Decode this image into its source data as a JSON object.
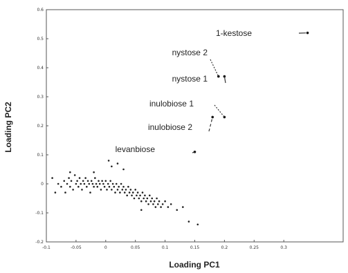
{
  "chart_data": {
    "type": "scatter",
    "xlabel": "Loading PC1",
    "ylabel": "Loading PC2",
    "xlim": [
      -0.1,
      0.4
    ],
    "ylim": [
      -0.2,
      0.6
    ],
    "xticks": [
      {
        "value": -0.1,
        "label": "-0.1"
      },
      {
        "value": -0.05,
        "label": "-0.05"
      },
      {
        "value": 0,
        "label": "0"
      },
      {
        "value": 0.05,
        "label": "0.05"
      },
      {
        "value": 0.1,
        "label": "0.1"
      },
      {
        "value": 0.15,
        "label": "0.15"
      },
      {
        "value": 0.2,
        "label": "0.2"
      },
      {
        "value": 0.25,
        "label": "0.25"
      },
      {
        "value": 0.3,
        "label": "0.3"
      }
    ],
    "yticks": [
      {
        "value": -0.2,
        "label": "-0.2"
      },
      {
        "value": -0.1,
        "label": "-0.1"
      },
      {
        "value": 0,
        "label": "0"
      },
      {
        "value": 0.1,
        "label": "0.1"
      },
      {
        "value": 0.2,
        "label": "0.2"
      },
      {
        "value": 0.3,
        "label": "0.3"
      },
      {
        "value": 0.4,
        "label": "0.4"
      },
      {
        "value": 0.5,
        "label": "0.5"
      },
      {
        "value": 0.6,
        "label": "0.6"
      }
    ],
    "highlighted_points": [
      {
        "label": "1-kestose",
        "x": 0.34,
        "y": 0.52
      },
      {
        "label": "nystose 2",
        "x": 0.19,
        "y": 0.37
      },
      {
        "label": "nystose 1",
        "x": 0.2,
        "y": 0.37
      },
      {
        "label": "inulobiose 1",
        "x": 0.2,
        "y": 0.23
      },
      {
        "label": "inulobiose 2",
        "x": 0.18,
        "y": 0.23
      },
      {
        "label": "levanbiose",
        "x": 0.15,
        "y": 0.11
      }
    ],
    "points": [
      {
        "x": -0.09,
        "y": 0.02
      },
      {
        "x": -0.085,
        "y": -0.03
      },
      {
        "x": -0.08,
        "y": 0.0
      },
      {
        "x": -0.075,
        "y": -0.01
      },
      {
        "x": -0.07,
        "y": 0.01
      },
      {
        "x": -0.068,
        "y": -0.03
      },
      {
        "x": -0.065,
        "y": 0.0
      },
      {
        "x": -0.062,
        "y": 0.02
      },
      {
        "x": -0.06,
        "y": -0.01
      },
      {
        "x": -0.058,
        "y": 0.01
      },
      {
        "x": -0.055,
        "y": -0.02
      },
      {
        "x": -0.052,
        "y": 0.03
      },
      {
        "x": -0.05,
        "y": 0.0
      },
      {
        "x": -0.048,
        "y": 0.01
      },
      {
        "x": -0.046,
        "y": -0.01
      },
      {
        "x": -0.044,
        "y": 0.02
      },
      {
        "x": -0.042,
        "y": 0.0
      },
      {
        "x": -0.04,
        "y": -0.02
      },
      {
        "x": -0.038,
        "y": 0.01
      },
      {
        "x": -0.036,
        "y": 0.0
      },
      {
        "x": -0.034,
        "y": 0.02
      },
      {
        "x": -0.032,
        "y": -0.01
      },
      {
        "x": -0.03,
        "y": 0.01
      },
      {
        "x": -0.028,
        "y": 0.0
      },
      {
        "x": -0.026,
        "y": -0.03
      },
      {
        "x": -0.024,
        "y": 0.01
      },
      {
        "x": -0.022,
        "y": 0.0
      },
      {
        "x": -0.02,
        "y": -0.01
      },
      {
        "x": -0.018,
        "y": 0.02
      },
      {
        "x": -0.016,
        "y": 0.0
      },
      {
        "x": -0.014,
        "y": -0.01
      },
      {
        "x": -0.012,
        "y": 0.01
      },
      {
        "x": -0.01,
        "y": 0.0
      },
      {
        "x": -0.008,
        "y": -0.02
      },
      {
        "x": -0.006,
        "y": 0.01
      },
      {
        "x": -0.004,
        "y": 0.0
      },
      {
        "x": -0.002,
        "y": -0.01
      },
      {
        "x": 0.0,
        "y": 0.01
      },
      {
        "x": 0.002,
        "y": -0.02
      },
      {
        "x": 0.004,
        "y": 0.0
      },
      {
        "x": 0.006,
        "y": -0.01
      },
      {
        "x": 0.008,
        "y": 0.01
      },
      {
        "x": 0.01,
        "y": -0.02
      },
      {
        "x": 0.012,
        "y": 0.0
      },
      {
        "x": 0.014,
        "y": -0.01
      },
      {
        "x": 0.016,
        "y": -0.03
      },
      {
        "x": 0.018,
        "y": 0.0
      },
      {
        "x": 0.02,
        "y": -0.02
      },
      {
        "x": 0.022,
        "y": -0.01
      },
      {
        "x": 0.024,
        "y": -0.03
      },
      {
        "x": 0.026,
        "y": 0.0
      },
      {
        "x": 0.028,
        "y": -0.02
      },
      {
        "x": 0.03,
        "y": -0.01
      },
      {
        "x": 0.032,
        "y": -0.03
      },
      {
        "x": 0.034,
        "y": -0.02
      },
      {
        "x": 0.036,
        "y": -0.04
      },
      {
        "x": 0.038,
        "y": -0.01
      },
      {
        "x": 0.04,
        "y": -0.03
      },
      {
        "x": 0.042,
        "y": -0.02
      },
      {
        "x": 0.044,
        "y": -0.04
      },
      {
        "x": 0.046,
        "y": -0.03
      },
      {
        "x": 0.048,
        "y": -0.05
      },
      {
        "x": 0.05,
        "y": -0.02
      },
      {
        "x": 0.052,
        "y": -0.04
      },
      {
        "x": 0.054,
        "y": -0.03
      },
      {
        "x": 0.056,
        "y": -0.05
      },
      {
        "x": 0.058,
        "y": -0.04
      },
      {
        "x": 0.06,
        "y": -0.06
      },
      {
        "x": 0.062,
        "y": -0.03
      },
      {
        "x": 0.064,
        "y": -0.05
      },
      {
        "x": 0.066,
        "y": -0.04
      },
      {
        "x": 0.068,
        "y": -0.06
      },
      {
        "x": 0.07,
        "y": -0.05
      },
      {
        "x": 0.072,
        "y": -0.07
      },
      {
        "x": 0.074,
        "y": -0.04
      },
      {
        "x": 0.076,
        "y": -0.06
      },
      {
        "x": 0.078,
        "y": -0.05
      },
      {
        "x": 0.08,
        "y": -0.07
      },
      {
        "x": 0.082,
        "y": -0.06
      },
      {
        "x": 0.084,
        "y": -0.08
      },
      {
        "x": 0.086,
        "y": -0.05
      },
      {
        "x": 0.088,
        "y": -0.07
      },
      {
        "x": 0.09,
        "y": -0.06
      },
      {
        "x": 0.093,
        "y": -0.08
      },
      {
        "x": 0.096,
        "y": -0.07
      },
      {
        "x": 0.1,
        "y": -0.06
      },
      {
        "x": 0.105,
        "y": -0.08
      },
      {
        "x": 0.11,
        "y": -0.07
      },
      {
        "x": 0.12,
        "y": -0.09
      },
      {
        "x": 0.13,
        "y": -0.08
      },
      {
        "x": 0.14,
        "y": -0.13
      },
      {
        "x": 0.155,
        "y": -0.14
      },
      {
        "x": 0.06,
        "y": -0.09
      },
      {
        "x": 0.02,
        "y": 0.07
      },
      {
        "x": 0.01,
        "y": 0.06
      },
      {
        "x": 0.03,
        "y": 0.05
      },
      {
        "x": -0.02,
        "y": 0.04
      },
      {
        "x": -0.06,
        "y": 0.04
      },
      {
        "x": 0.005,
        "y": 0.08
      }
    ]
  }
}
